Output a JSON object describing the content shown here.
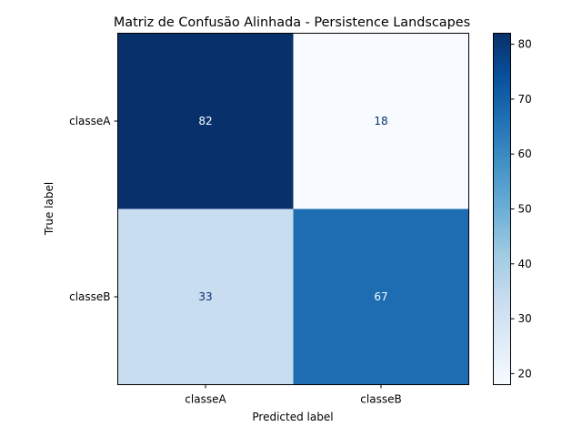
{
  "chart_data": {
    "type": "heatmap",
    "title": "Matriz de Confusão Alinhada - Persistence Landscapes",
    "xlabel": "Predicted label",
    "ylabel": "True label",
    "x_categories": [
      "classeA",
      "classeB"
    ],
    "y_categories": [
      "classeA",
      "classeB"
    ],
    "values": [
      [
        82,
        18
      ],
      [
        33,
        67
      ]
    ],
    "colormap": "Blues",
    "colorbar": {
      "min": 18,
      "max": 82,
      "ticks": [
        "20",
        "30",
        "40",
        "50",
        "60",
        "70",
        "80"
      ]
    },
    "grid": false
  }
}
